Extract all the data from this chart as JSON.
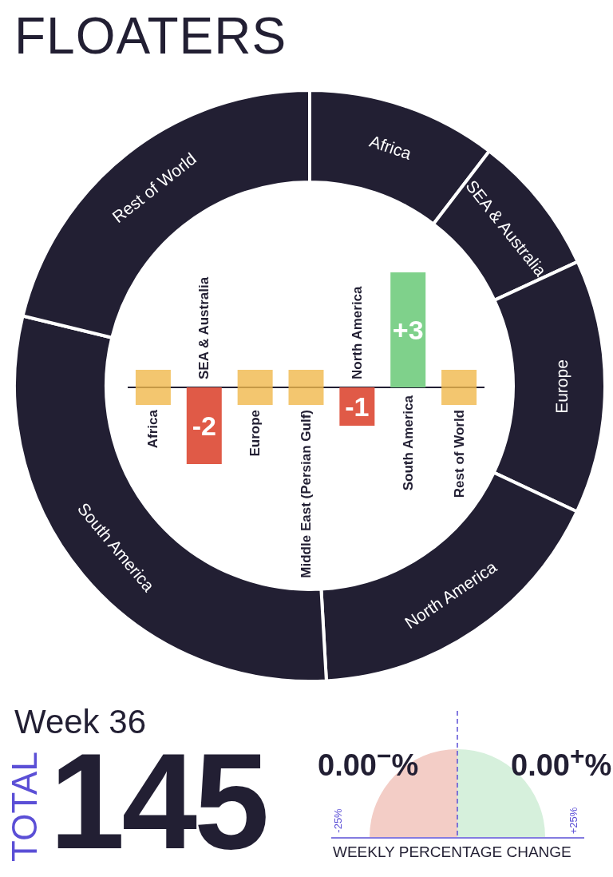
{
  "chart_data": [
    {
      "type": "donut",
      "title": "FLOATERS",
      "categories": [
        "Africa",
        "SEA & Australia",
        "Europe",
        "North America",
        "South America",
        "Rest of World"
      ],
      "values": [
        10.4,
        7.7,
        13.9,
        17.1,
        29.7,
        21.2
      ],
      "colors": [
        "#221f33",
        "#221f33",
        "#221f33",
        "#221f33",
        "#221f33",
        "#221f33"
      ]
    },
    {
      "type": "bar",
      "categories": [
        "Africa",
        "SEA & Australia",
        "Europe",
        "Middle East (Persian Gulf)",
        "North America",
        "South America",
        "Rest of World"
      ],
      "series": [
        {
          "type": "bar",
          "values": [
            0,
            -2,
            0,
            0,
            -1,
            3,
            0
          ],
          "colors": [
            "#f0b84b",
            "#e05a47",
            "#f0b84b",
            "#f0b84b",
            "#e05a47",
            "#7fd18b",
            "#f0b84b"
          ],
          "value_labels": [
            null,
            "-2",
            null,
            null,
            "-1",
            "+3",
            null
          ]
        },
        {
          "type": "scatter",
          "marker": "square",
          "color": "#f0b84b",
          "x": [
            "Africa",
            "Europe",
            "Middle East (Persian Gulf)",
            "Rest of World"
          ],
          "values": [
            0,
            0,
            0,
            0
          ]
        }
      ]
    },
    {
      "type": "other",
      "annotations": [
        "Week 36",
        "TOTAL",
        "145",
        "0.00$^{−}$%",
        "0.00$^{+}$%",
        "-25%",
        "+25%",
        "WEEKLY PERCENTAGE CHANGE"
      ]
    }
  ]
}
